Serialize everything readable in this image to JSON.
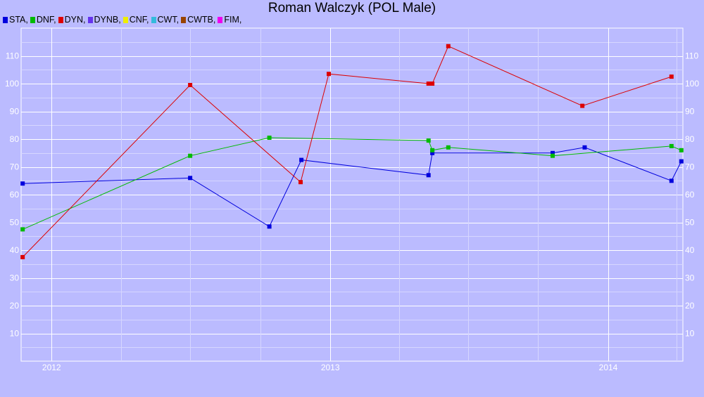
{
  "chart_data": {
    "type": "line",
    "title": "Roman Walczyk (POL Male)",
    "xlabel": "",
    "ylabel": "",
    "ylim": [
      0,
      120
    ],
    "xlim": [
      "2011-11-22",
      "2014-04-09"
    ],
    "y_ticks": [
      "10",
      "20",
      "30",
      "40",
      "50",
      "60",
      "70",
      "80",
      "90",
      "100",
      "110"
    ],
    "x_ticks": [
      {
        "label": "2012",
        "date": "2012-01-01"
      },
      {
        "label": "2013",
        "date": "2013-01-01"
      },
      {
        "label": "2014",
        "date": "2014-01-01"
      }
    ],
    "grid": true,
    "legend_position": "top-left",
    "legend": [
      {
        "label": "STA,",
        "color": "#0000dd"
      },
      {
        "label": "DNF,",
        "color": "#00bb00"
      },
      {
        "label": "DYN,",
        "color": "#dd0000"
      },
      {
        "label": "DYNB,",
        "color": "#6633ee"
      },
      {
        "label": "CNF,",
        "color": "#eeee00"
      },
      {
        "label": "CWT,",
        "color": "#33bbdd"
      },
      {
        "label": "CWTB,",
        "color": "#994400"
      },
      {
        "label": "FIM,",
        "color": "#ee00ee"
      }
    ],
    "series": [
      {
        "name": "STA",
        "color": "#0000dd",
        "points": [
          {
            "x": "2011-11-24",
            "y": 64
          },
          {
            "x": "2012-07-01",
            "y": 66
          },
          {
            "x": "2012-10-13",
            "y": 48.5
          },
          {
            "x": "2012-11-24",
            "y": 72.5
          },
          {
            "x": "2013-05-10",
            "y": 67
          },
          {
            "x": "2013-05-15",
            "y": 75
          },
          {
            "x": "2013-10-20",
            "y": 75
          },
          {
            "x": "2013-12-01",
            "y": 77
          },
          {
            "x": "2014-03-25",
            "y": 65
          },
          {
            "x": "2014-04-07",
            "y": 72
          }
        ]
      },
      {
        "name": "DNF",
        "color": "#00bb00",
        "points": [
          {
            "x": "2011-11-24",
            "y": 47.5
          },
          {
            "x": "2012-07-01",
            "y": 74
          },
          {
            "x": "2012-10-13",
            "y": 80.5
          },
          {
            "x": "2013-05-10",
            "y": 79.5
          },
          {
            "x": "2013-05-15",
            "y": 76
          },
          {
            "x": "2013-06-05",
            "y": 77
          },
          {
            "x": "2013-10-20",
            "y": 74
          },
          {
            "x": "2014-03-25",
            "y": 77.5
          },
          {
            "x": "2014-04-07",
            "y": 76
          }
        ]
      },
      {
        "name": "DYN",
        "color": "#dd0000",
        "points": [
          {
            "x": "2011-11-24",
            "y": 37.5
          },
          {
            "x": "2012-07-01",
            "y": 99.5
          },
          {
            "x": "2012-11-23",
            "y": 64.5
          },
          {
            "x": "2012-12-30",
            "y": 103.5
          },
          {
            "x": "2013-05-10",
            "y": 100
          },
          {
            "x": "2013-05-15",
            "y": 100
          },
          {
            "x": "2013-06-05",
            "y": 113.5
          },
          {
            "x": "2013-11-28",
            "y": 92
          },
          {
            "x": "2014-03-25",
            "y": 102.5
          }
        ]
      }
    ]
  }
}
